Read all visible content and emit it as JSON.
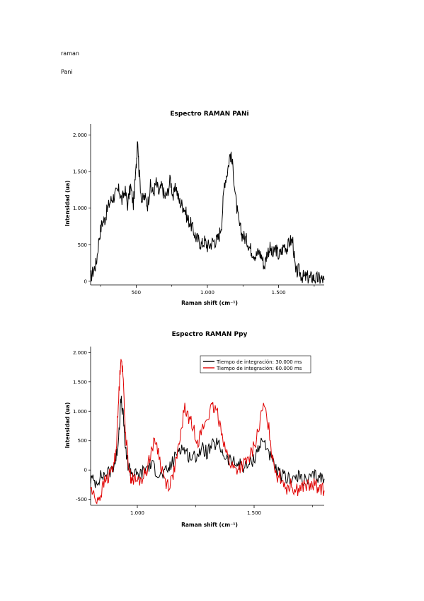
{
  "doc": {
    "line1": "raman",
    "line2": "Pani"
  },
  "chart_data": [
    {
      "type": "line",
      "title": "Espectro RAMAN PANi",
      "xlabel": "Raman shift (cm⁻¹)",
      "ylabel": "Intensidad (ua)",
      "xlim": [
        180,
        1820
      ],
      "ylim": [
        -50,
        2150
      ],
      "xticks": [
        500,
        1000,
        1500
      ],
      "xtick_labels": [
        "500",
        "1.000",
        "1.500"
      ],
      "yticks": [
        0,
        500,
        1000,
        1500,
        2000
      ],
      "ytick_labels": [
        "0",
        "500",
        "1.000",
        "1.500",
        "2.000"
      ],
      "grid": false,
      "series": [
        {
          "color": "#000000",
          "x": [
            180,
            200,
            220,
            240,
            260,
            280,
            300,
            320,
            340,
            360,
            380,
            400,
            420,
            440,
            460,
            480,
            500,
            510,
            520,
            540,
            560,
            580,
            600,
            620,
            640,
            660,
            680,
            700,
            720,
            740,
            760,
            780,
            800,
            820,
            840,
            860,
            880,
            900,
            920,
            940,
            960,
            980,
            1000,
            1020,
            1040,
            1060,
            1080,
            1100,
            1120,
            1140,
            1160,
            1180,
            1200,
            1220,
            1240,
            1260,
            1280,
            1300,
            1320,
            1340,
            1360,
            1380,
            1400,
            1420,
            1440,
            1460,
            1480,
            1500,
            1520,
            1540,
            1560,
            1580,
            1600,
            1620,
            1640,
            1660,
            1680,
            1700,
            1720,
            1740,
            1760,
            1780,
            1800,
            1820
          ],
          "y": [
            50,
            150,
            250,
            600,
            800,
            850,
            1000,
            1100,
            1150,
            1200,
            1250,
            1100,
            1250,
            1050,
            1300,
            1050,
            1550,
            2000,
            1500,
            1100,
            1150,
            1050,
            1300,
            1200,
            1350,
            1200,
            1300,
            1150,
            1200,
            1400,
            1150,
            1300,
            1100,
            1050,
            1000,
            850,
            800,
            700,
            600,
            550,
            500,
            550,
            480,
            500,
            550,
            550,
            600,
            800,
            1350,
            1500,
            1750,
            1550,
            1100,
            800,
            650,
            600,
            550,
            450,
            400,
            350,
            400,
            350,
            200,
            400,
            450,
            350,
            450,
            350,
            400,
            500,
            450,
            550,
            550,
            100,
            150,
            80,
            50,
            60,
            40,
            60,
            30,
            40,
            30,
            20
          ]
        }
      ]
    },
    {
      "type": "line",
      "title": "Espectro RAMAN Ppy",
      "xlabel": "Raman shift (cm⁻¹)",
      "ylabel": "Intensidad (ua)",
      "xlim": [
        800,
        1800
      ],
      "ylim": [
        -600,
        2100
      ],
      "xticks": [
        1000,
        1500
      ],
      "xtick_labels": [
        "1.000",
        "1.500"
      ],
      "yticks": [
        -500,
        0,
        500,
        1000,
        1500,
        2000
      ],
      "ytick_labels": [
        "-500",
        "0",
        "500",
        "1.000",
        "1.500",
        "2.000"
      ],
      "grid": false,
      "legend": "top-right",
      "series": [
        {
          "name": "Tiempo de integración: 30.000 ms",
          "color": "#000000",
          "x": [
            800,
            820,
            840,
            860,
            880,
            900,
            910,
            920,
            930,
            940,
            950,
            960,
            970,
            980,
            1000,
            1020,
            1040,
            1060,
            1080,
            1100,
            1120,
            1140,
            1160,
            1180,
            1200,
            1220,
            1240,
            1260,
            1280,
            1300,
            1320,
            1340,
            1360,
            1380,
            1400,
            1420,
            1440,
            1460,
            1480,
            1500,
            1520,
            1540,
            1560,
            1580,
            1600,
            1620,
            1640,
            1660,
            1680,
            1700,
            1720,
            1740,
            1760,
            1780,
            1800
          ],
          "y": [
            -150,
            -200,
            -120,
            -80,
            -50,
            100,
            200,
            600,
            1200,
            900,
            300,
            100,
            0,
            -50,
            -100,
            -50,
            50,
            100,
            0,
            -100,
            -50,
            50,
            200,
            400,
            350,
            250,
            200,
            300,
            350,
            300,
            400,
            450,
            350,
            200,
            150,
            100,
            100,
            50,
            100,
            200,
            400,
            500,
            350,
            100,
            -50,
            -100,
            -150,
            -120,
            -150,
            -100,
            -200,
            -150,
            -100,
            -120,
            -150
          ]
        },
        {
          "name": "Tiempo de integración: 60.000 ms",
          "color": "#e00000",
          "x": [
            800,
            820,
            840,
            860,
            880,
            900,
            910,
            920,
            930,
            940,
            950,
            960,
            970,
            980,
            1000,
            1020,
            1040,
            1060,
            1080,
            1100,
            1120,
            1140,
            1160,
            1180,
            1200,
            1220,
            1240,
            1260,
            1280,
            1300,
            1320,
            1340,
            1360,
            1380,
            1400,
            1420,
            1440,
            1460,
            1480,
            1500,
            1520,
            1540,
            1560,
            1580,
            1600,
            1620,
            1640,
            1660,
            1680,
            1700,
            1720,
            1740,
            1760,
            1780,
            1800
          ],
          "y": [
            -300,
            -500,
            -450,
            -200,
            -100,
            100,
            400,
            1200,
            2000,
            1500,
            600,
            200,
            -100,
            -150,
            -200,
            -150,
            0,
            350,
            500,
            100,
            -200,
            -250,
            50,
            400,
            1050,
            900,
            700,
            500,
            700,
            900,
            1050,
            1000,
            700,
            300,
            100,
            0,
            50,
            100,
            200,
            400,
            700,
            1100,
            800,
            200,
            -100,
            -150,
            -300,
            -250,
            -350,
            -300,
            -250,
            -300,
            -250,
            -300,
            -350
          ]
        }
      ]
    }
  ]
}
